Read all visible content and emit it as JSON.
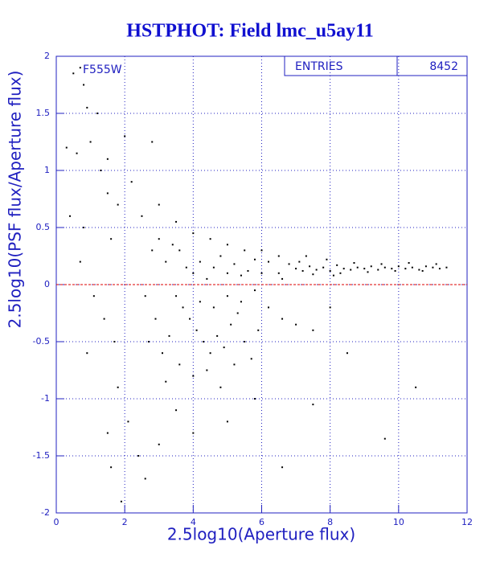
{
  "chart_data": {
    "type": "scatter",
    "title": "HSTPHOT: Field lmc_u5ay11",
    "x_label": "2.5log10(Aperture flux)",
    "y_label": "2.5log10(PSF flux/Aperture flux)",
    "annotation": "F555W",
    "stats": {
      "label": "ENTRIES",
      "value": 8452
    },
    "color": "#000000",
    "grid": true,
    "reference_line": {
      "value": 0,
      "color": "#dd0000"
    },
    "xlim": [
      0,
      12
    ],
    "xticks": [
      0,
      2,
      4,
      6,
      8,
      10,
      12
    ],
    "ylim": [
      -2,
      2
    ],
    "yticks": [
      -2,
      -1.5,
      -1,
      -0.5,
      0,
      0.5,
      1,
      1.5,
      2
    ],
    "x": [
      7.0,
      7.2,
      7.4,
      7.6,
      7.8,
      8.0,
      8.2,
      8.4,
      8.6,
      8.8,
      9.0,
      9.2,
      9.4,
      9.6,
      9.8,
      10.0,
      10.2,
      10.4,
      10.6,
      10.8,
      11.0,
      11.2,
      11.4,
      7.1,
      7.5,
      7.9,
      8.3,
      8.7,
      9.1,
      9.5,
      9.9,
      10.3,
      10.7,
      11.1,
      6.8,
      6.5,
      6.2,
      6.6,
      7.3,
      8.1,
      4.0,
      4.2,
      4.4,
      4.6,
      4.8,
      5.0,
      5.2,
      5.4,
      5.6,
      5.8,
      6.0,
      3.6,
      3.8,
      3.4,
      3.2,
      3.0,
      2.8,
      3.5,
      3.7,
      3.9,
      4.1,
      4.3,
      4.5,
      4.7,
      4.9,
      5.1,
      5.3,
      5.5,
      5.7,
      5.9,
      3.3,
      3.1,
      2.9,
      2.7,
      3.6,
      4.0,
      4.4,
      4.8,
      5.2,
      3.2,
      2.6,
      2.5,
      3.0,
      3.5,
      4.0,
      4.5,
      5.0,
      5.5,
      6.0,
      6.5,
      4.2,
      4.6,
      5.0,
      5.4,
      5.8,
      6.2,
      6.6,
      7.0,
      7.5,
      8.0,
      0.5,
      0.7,
      0.8,
      0.3,
      0.6,
      1.0,
      1.3,
      1.5,
      2.0,
      2.8,
      1.2,
      0.9,
      0.4,
      0.8,
      1.5,
      1.8,
      2.2,
      1.6,
      0.7,
      1.1,
      1.4,
      1.7,
      0.9,
      1.8,
      1.5,
      2.1,
      2.4,
      1.6,
      1.9,
      2.6,
      3.0,
      3.5,
      4.0,
      5.0,
      5.8,
      6.6,
      7.5,
      9.6,
      10.5,
      8.5
    ],
    "y": [
      0.14,
      0.12,
      0.16,
      0.13,
      0.15,
      0.12,
      0.17,
      0.14,
      0.13,
      0.15,
      0.14,
      0.16,
      0.13,
      0.15,
      0.14,
      0.16,
      0.14,
      0.15,
      0.13,
      0.16,
      0.15,
      0.14,
      0.15,
      0.2,
      0.09,
      0.22,
      0.1,
      0.19,
      0.11,
      0.18,
      0.12,
      0.19,
      0.12,
      0.18,
      0.18,
      0.1,
      0.2,
      0.05,
      0.25,
      0.08,
      0.1,
      0.2,
      0.05,
      0.15,
      0.25,
      0.1,
      0.18,
      0.08,
      0.12,
      0.22,
      0.1,
      0.3,
      0.15,
      0.35,
      0.2,
      0.4,
      0.3,
      -0.1,
      -0.2,
      -0.3,
      -0.4,
      -0.5,
      -0.6,
      -0.45,
      -0.55,
      -0.35,
      -0.25,
      -0.5,
      -0.65,
      -0.4,
      -0.45,
      -0.6,
      -0.3,
      -0.5,
      -0.7,
      -0.8,
      -0.75,
      -0.9,
      -0.7,
      -0.85,
      -0.1,
      0.6,
      0.7,
      0.55,
      0.45,
      0.4,
      0.35,
      0.3,
      0.3,
      0.25,
      -0.15,
      -0.2,
      -0.1,
      -0.15,
      -0.05,
      -0.2,
      -0.3,
      -0.35,
      -0.4,
      -0.2,
      1.85,
      1.9,
      1.75,
      1.2,
      1.15,
      1.25,
      1.0,
      1.1,
      1.3,
      1.25,
      1.5,
      1.55,
      0.6,
      0.5,
      0.8,
      0.7,
      0.9,
      0.4,
      0.2,
      -0.1,
      -0.3,
      -0.5,
      -0.6,
      -0.9,
      -1.3,
      -1.2,
      -1.5,
      -1.6,
      -1.9,
      -1.7,
      -1.4,
      -1.1,
      -1.3,
      -1.2,
      -1.0,
      -1.6,
      -1.05,
      -1.35,
      -0.9,
      -0.6
    ]
  }
}
